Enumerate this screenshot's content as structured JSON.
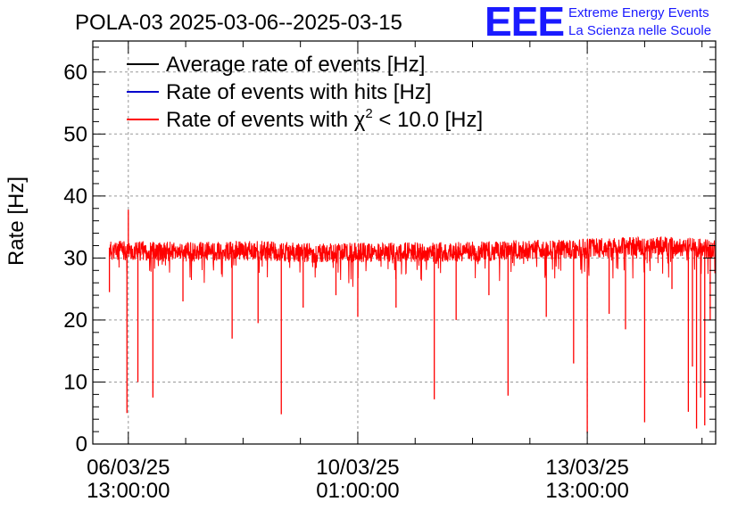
{
  "chart_data": {
    "type": "line",
    "title": "POLA-03 2025-03-06--2025-03-15",
    "ylabel": "Rate [Hz]",
    "xlabel": "",
    "ylim": [
      0,
      65
    ],
    "yticks": [
      0,
      10,
      20,
      30,
      40,
      50,
      60
    ],
    "xlim": [
      "2025-03-06T00:00:00",
      "2025-03-15T12:00:00"
    ],
    "xticks": [
      {
        "at": "2025-03-06T13:00:00",
        "date": "06/03/25",
        "time": "13:00:00"
      },
      {
        "at": "2025-03-10T01:00:00",
        "date": "10/03/25",
        "time": "01:00:00"
      },
      {
        "at": "2025-03-13T13:00:00",
        "date": "13/03/25",
        "time": "13:00:00"
      }
    ],
    "grid": true,
    "legend_position": "top-left",
    "series": [
      {
        "name": "Average rate of events [Hz]",
        "color": "#000000"
      },
      {
        "name": "Rate of events with hits [Hz]",
        "color": "#0000cc"
      },
      {
        "name": "Rate of events with χ² < 10.0 [Hz]",
        "name_prefix": "Rate of events with ",
        "name_symbol": "χ",
        "name_sup": "2",
        "name_suffix": " < 10.0 [Hz]",
        "color": "#ff0000",
        "baseline_by_day": [
          [
            "2025-03-06T12:00:00",
            31.2
          ],
          [
            "2025-03-07T12:00:00",
            31.0
          ],
          [
            "2025-03-08T12:00:00",
            31.2
          ],
          [
            "2025-03-09T12:00:00",
            30.8
          ],
          [
            "2025-03-10T12:00:00",
            30.9
          ],
          [
            "2025-03-11T12:00:00",
            31.0
          ],
          [
            "2025-03-12T12:00:00",
            31.3
          ],
          [
            "2025-03-13T12:00:00",
            31.5
          ],
          [
            "2025-03-14T12:00:00",
            32.0
          ],
          [
            "2025-03-15T12:00:00",
            31.5
          ]
        ],
        "dips": [
          [
            "2025-03-06T06:05:00",
            24.5
          ],
          [
            "2025-03-06T12:30:00",
            5.0
          ],
          [
            "2025-03-06T13:00:00",
            37.8
          ],
          [
            "2025-03-06T16:30:00",
            10.0
          ],
          [
            "2025-03-06T22:00:00",
            7.5
          ],
          [
            "2025-03-07T09:00:00",
            23.0
          ],
          [
            "2025-03-08T03:00:00",
            17.0
          ],
          [
            "2025-03-08T12:30:00",
            19.5
          ],
          [
            "2025-03-08T21:00:00",
            4.8
          ],
          [
            "2025-03-09T05:00:00",
            22.0
          ],
          [
            "2025-03-09T17:00:00",
            24.0
          ],
          [
            "2025-03-10T01:00:00",
            20.5
          ],
          [
            "2025-03-10T15:00:00",
            22.0
          ],
          [
            "2025-03-11T05:00:00",
            7.2
          ],
          [
            "2025-03-11T13:00:00",
            20.0
          ],
          [
            "2025-03-12T01:00:00",
            24.0
          ],
          [
            "2025-03-12T08:00:00",
            7.8
          ],
          [
            "2025-03-12T22:00:00",
            20.5
          ],
          [
            "2025-03-13T08:00:00",
            13.0
          ],
          [
            "2025-03-13T13:00:00",
            1.8
          ],
          [
            "2025-03-13T21:00:00",
            21.0
          ],
          [
            "2025-03-14T03:00:00",
            18.5
          ],
          [
            "2025-03-14T10:00:00",
            3.5
          ],
          [
            "2025-03-14T20:00:00",
            25.0
          ],
          [
            "2025-03-15T02:00:00",
            5.2
          ],
          [
            "2025-03-15T03:30:00",
            12.5
          ],
          [
            "2025-03-15T05:00:00",
            2.5
          ],
          [
            "2025-03-15T06:30:00",
            7.5
          ],
          [
            "2025-03-15T08:00:00",
            3.0
          ],
          [
            "2025-03-15T10:00:00",
            20.0
          ]
        ]
      }
    ]
  },
  "logo": {
    "mark": "EEE",
    "line1": "Extreme Energy Events",
    "line2": "La Scienza nelle Scuole"
  }
}
